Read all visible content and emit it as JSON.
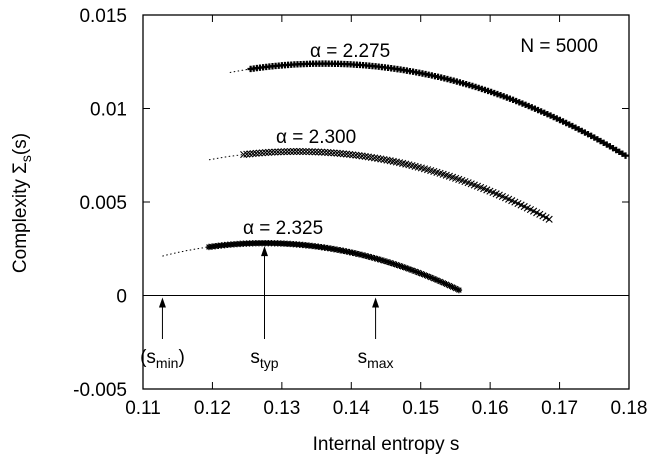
{
  "chart_data": {
    "type": "scatter",
    "xlabel": "Internal entropy s",
    "ylabel_main": "Complexity Σ",
    "ylabel_sub": "s",
    "ylabel_tail": "(s)",
    "xlim": [
      0.11,
      0.18
    ],
    "ylim": [
      -0.005,
      0.015
    ],
    "x_ticks": [
      0.11,
      0.12,
      0.13,
      0.14,
      0.15,
      0.16,
      0.17,
      0.18
    ],
    "x_tick_labels": [
      "0.11",
      "0.12",
      "0.13",
      "0.14",
      "0.15",
      "0.16",
      "0.17",
      "0.18"
    ],
    "y_ticks": [
      -0.005,
      0,
      0.005,
      0.01,
      0.015
    ],
    "y_tick_labels": [
      "-0.005",
      "0",
      "0.005",
      "0.01",
      "0.015"
    ],
    "zero_line": 0,
    "annotation_N": "N = 5000",
    "series": [
      {
        "name": "α = 2.275",
        "marker": "plus-bold",
        "peak": [
          0.136,
          0.0124
        ],
        "curvature": 2.6,
        "data_x_range": [
          0.1255,
          0.1795
        ],
        "extrap_x_range": [
          0.1225,
          0.1255
        ]
      },
      {
        "name": "α = 2.300",
        "marker": "cross",
        "peak": [
          0.1322,
          0.0077
        ],
        "curvature": 2.75,
        "data_x_range": [
          0.1245,
          0.1685
        ],
        "extrap_x_range": [
          0.1195,
          0.1245
        ]
      },
      {
        "name": "α = 2.325",
        "marker": "asterisk",
        "peak": [
          0.1275,
          0.0028
        ],
        "curvature": 3.2,
        "data_x_range": [
          0.1195,
          0.1555
        ],
        "extrap_x_range": [
          0.1128,
          0.1195
        ]
      }
    ],
    "arrows": [
      {
        "label_base": "(s",
        "label_sub": "min",
        "label_tail": ")",
        "x": 0.1128
      },
      {
        "label_base": "s",
        "label_sub": "typ",
        "label_tail": "",
        "x": 0.1275
      },
      {
        "label_base": "s",
        "label_sub": "max",
        "label_tail": "",
        "x": 0.1435
      }
    ]
  }
}
